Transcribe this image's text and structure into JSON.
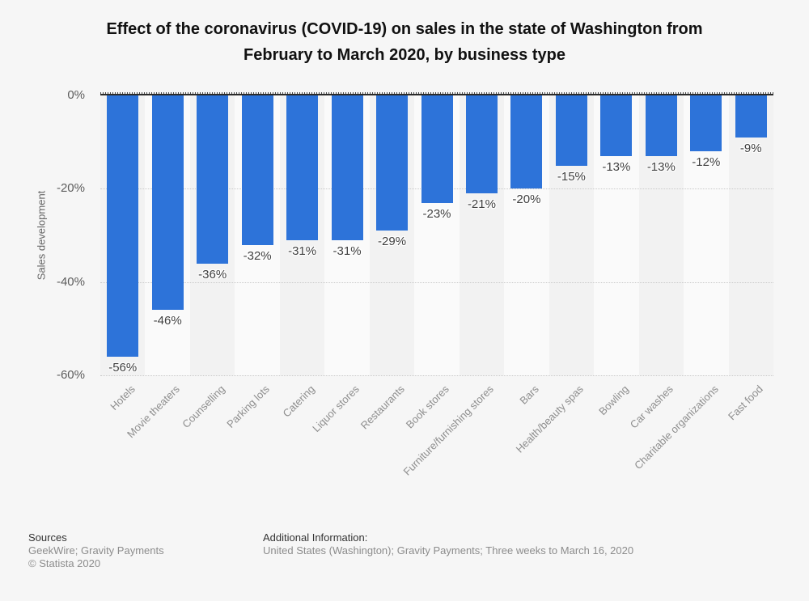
{
  "title": "Effect of the coronavirus (COVID-19) on sales in the state of Washington from February to March 2020, by business type",
  "chart_data": {
    "type": "bar",
    "title": "Effect of the coronavirus (COVID-19) on sales in the state of Washington from February to March 2020, by business type",
    "xlabel": "",
    "ylabel": "Sales development",
    "ylim": [
      -60,
      0
    ],
    "yticks": [
      "0%",
      "-20%",
      "-40%",
      "-60%"
    ],
    "grid": true,
    "legend": "none",
    "bar_color": "#2d73d9",
    "categories": [
      "Hotels",
      "Movie theaters",
      "Counselling",
      "Parking lots",
      "Catering",
      "Liquor stores",
      "Restaurants",
      "Book stores",
      "Furniture/furnishing stores",
      "Bars",
      "Health/beauty spas",
      "Bowling",
      "Car washes",
      "Charitable organizations",
      "Fast food"
    ],
    "values": [
      -56,
      -46,
      -36,
      -32,
      -31,
      -31,
      -29,
      -23,
      -21,
      -20,
      -15,
      -13,
      -13,
      -12,
      -9
    ],
    "data_labels": [
      "-56%",
      "-46%",
      "-36%",
      "-32%",
      "-31%",
      "-31%",
      "-29%",
      "-23%",
      "-21%",
      "-20%",
      "-15%",
      "-13%",
      "-13%",
      "-12%",
      "-9%"
    ]
  },
  "footer": {
    "sources_heading": "Sources",
    "sources_line": "GeekWire; Gravity Payments",
    "copyright_line": "© Statista 2020",
    "additional_heading": "Additional Information:",
    "additional_line": "United States (Washington); Gravity Payments; Three weeks to March 16, 2020"
  }
}
